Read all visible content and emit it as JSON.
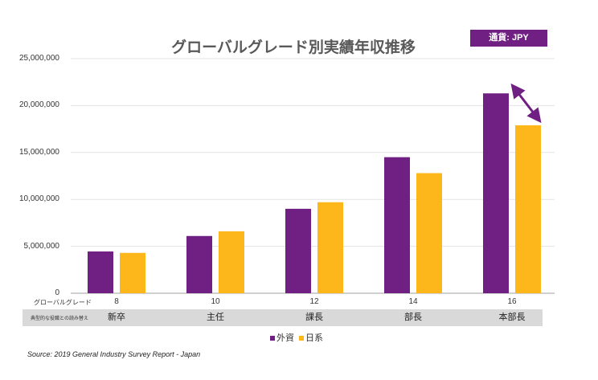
{
  "chart_data": {
    "type": "bar",
    "title": "グローバルグレード別実績年収推移",
    "currency_badge": "通貨: JPY",
    "categories": [
      "8",
      "10",
      "12",
      "14",
      "16"
    ],
    "category_row_label": "グローバルグレード",
    "roles_row_label": "典型的な役職との読み替え",
    "roles": [
      "新卒",
      "主任",
      "課長",
      "部長",
      "本部長"
    ],
    "series": [
      {
        "name": "外資",
        "color": "#702082",
        "values": [
          4450000,
          6100000,
          9000000,
          14500000,
          21300000
        ]
      },
      {
        "name": "日系",
        "color": "#FDB71A",
        "values": [
          4300000,
          6600000,
          9700000,
          12800000,
          17900000
        ]
      }
    ],
    "ylim": [
      0,
      25000000
    ],
    "yticks": [
      "0",
      "5,000,000",
      "10,000,000",
      "15,000,000",
      "20,000,000",
      "25,000,000"
    ],
    "grid": true,
    "legend": "bottom",
    "annotation": "double-headed arrow between 外資 and 日系 at grade 16",
    "source": "Source: 2019 General Industry Survey Report - Japan"
  }
}
